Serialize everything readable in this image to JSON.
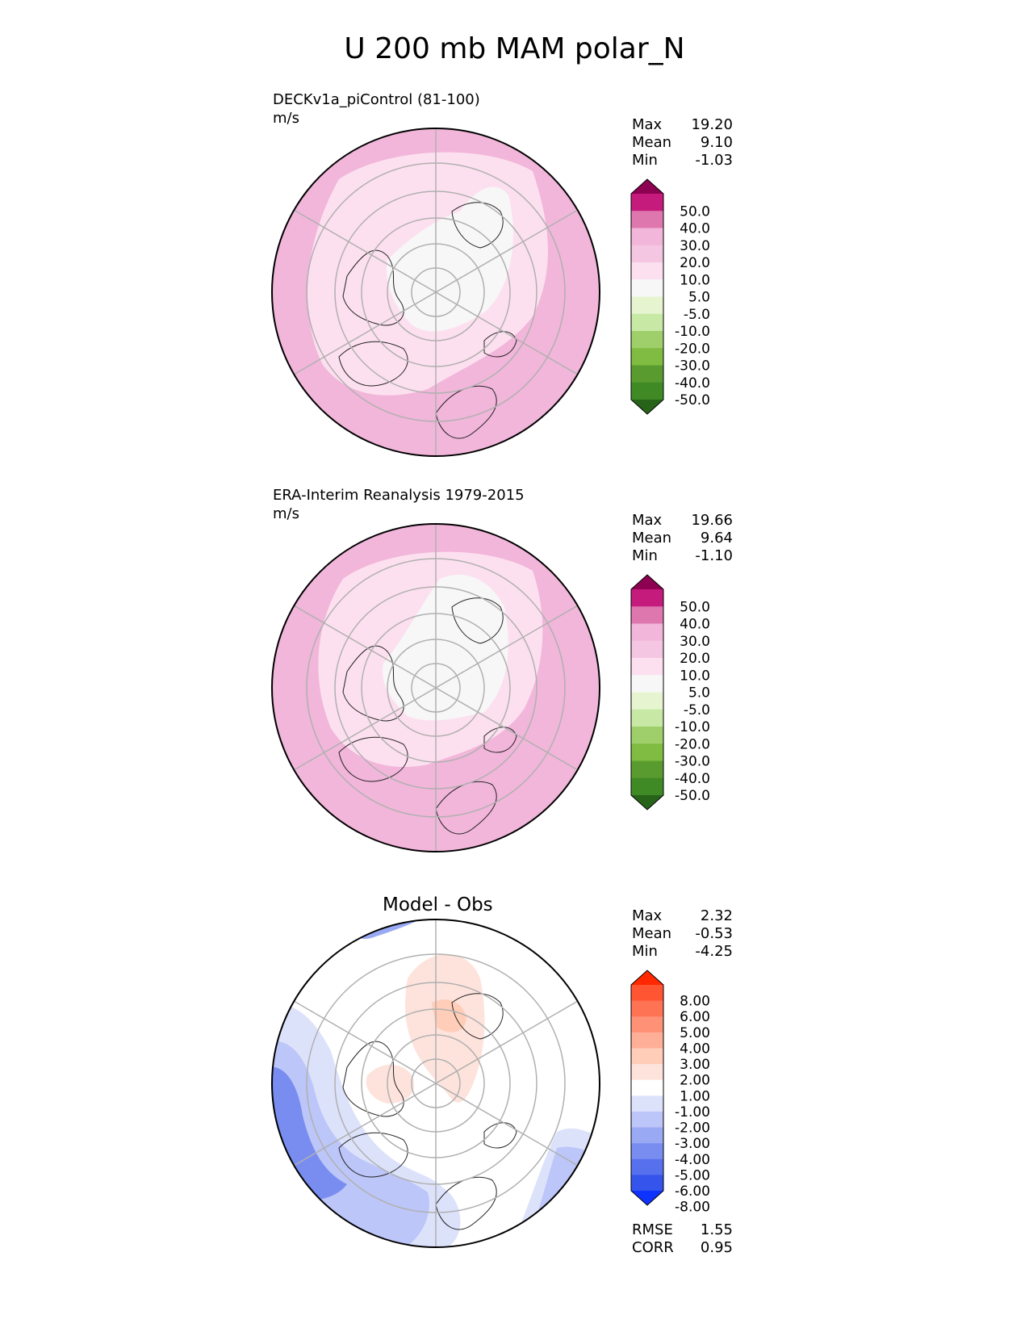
{
  "title": "U 200 mb MAM polar_N",
  "panels": [
    {
      "title": "DECKv1a_piControl (81-100)",
      "units": "m/s",
      "stats": [
        {
          "label": "Max",
          "value": "19.20"
        },
        {
          "label": "Mean",
          "value": "9.10"
        },
        {
          "label": "Min",
          "value": "-1.03"
        }
      ],
      "colorbar": {
        "labels": [
          "50.0",
          "40.0",
          "30.0",
          "20.0",
          "10.0",
          "5.0",
          "-5.0",
          "-10.0",
          "-20.0",
          "-30.0",
          "-40.0",
          "-50.0"
        ],
        "colors": [
          "#8e0152",
          "#c51b7d",
          "#de77ae",
          "#f1b6da",
          "#f5c6e2",
          "#fde0ef",
          "#f7f7f7",
          "#e6f5d0",
          "#c7e9a5",
          "#9fcf6b",
          "#7fbc41",
          "#5a9b30",
          "#3f8a24",
          "#276419"
        ]
      }
    },
    {
      "title": "ERA-Interim Reanalysis 1979-2015",
      "units": "m/s",
      "stats": [
        {
          "label": "Max",
          "value": "19.66"
        },
        {
          "label": "Mean",
          "value": "9.64"
        },
        {
          "label": "Min",
          "value": "-1.10"
        }
      ],
      "colorbar": {
        "labels": [
          "50.0",
          "40.0",
          "30.0",
          "20.0",
          "10.0",
          "5.0",
          "-5.0",
          "-10.0",
          "-20.0",
          "-30.0",
          "-40.0",
          "-50.0"
        ],
        "colors": [
          "#8e0152",
          "#c51b7d",
          "#de77ae",
          "#f1b6da",
          "#f5c6e2",
          "#fde0ef",
          "#f7f7f7",
          "#e6f5d0",
          "#c7e9a5",
          "#9fcf6b",
          "#7fbc41",
          "#5a9b30",
          "#3f8a24",
          "#276419"
        ]
      }
    },
    {
      "title": "Model - Obs",
      "units": "",
      "stats": [
        {
          "label": "Max",
          "value": "2.32"
        },
        {
          "label": "Mean",
          "value": "-0.53"
        },
        {
          "label": "Min",
          "value": "-4.25"
        }
      ],
      "extra_stats": [
        {
          "label": "RMSE",
          "value": "1.55"
        },
        {
          "label": "CORR",
          "value": "0.95"
        }
      ],
      "colorbar": {
        "labels": [
          "8.00",
          "6.00",
          "5.00",
          "4.00",
          "3.00",
          "2.00",
          "1.00",
          "-1.00",
          "-2.00",
          "-3.00",
          "-4.00",
          "-5.00",
          "-6.00",
          "-8.00"
        ],
        "colors": [
          "#ff2800",
          "#ff5533",
          "#ff7355",
          "#ff9176",
          "#ffaf97",
          "#ffcdb8",
          "#fde3dc",
          "#ffffff",
          "#dde2fb",
          "#bcc6f8",
          "#9aa9f4",
          "#798df1",
          "#5770ee",
          "#3554eb",
          "#0f33ff"
        ]
      }
    }
  ],
  "chart_data": [
    {
      "type": "heatmap",
      "projection": "north polar stereographic",
      "title": "DECKv1a_piControl (81-100)",
      "units": "m/s",
      "stats": {
        "max": 19.2,
        "mean": 9.1,
        "min": -1.03
      },
      "colorbar_levels": [
        -50,
        -40,
        -30,
        -20,
        -10,
        -5,
        5,
        10,
        20,
        30,
        40,
        50
      ],
      "colorbar_extend": "both"
    },
    {
      "type": "heatmap",
      "projection": "north polar stereographic",
      "title": "ERA-Interim Reanalysis 1979-2015",
      "units": "m/s",
      "stats": {
        "max": 19.66,
        "mean": 9.64,
        "min": -1.1
      },
      "colorbar_levels": [
        -50,
        -40,
        -30,
        -20,
        -10,
        -5,
        5,
        10,
        20,
        30,
        40,
        50
      ],
      "colorbar_extend": "both"
    },
    {
      "type": "heatmap",
      "projection": "north polar stereographic",
      "title": "Model - Obs",
      "stats": {
        "max": 2.32,
        "mean": -0.53,
        "min": -4.25,
        "rmse": 1.55,
        "corr": 0.95
      },
      "colorbar_levels": [
        -8,
        -6,
        -5,
        -4,
        -3,
        -2,
        -1,
        1,
        2,
        3,
        4,
        5,
        6,
        8
      ],
      "colorbar_extend": "both"
    }
  ]
}
